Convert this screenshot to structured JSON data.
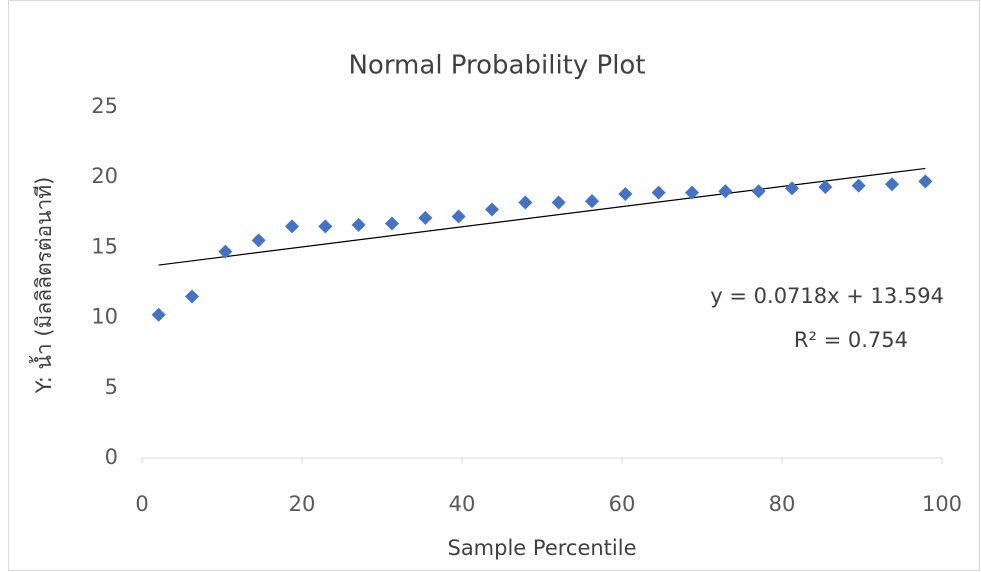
{
  "chart_data": {
    "type": "scatter",
    "title": "Normal Probability Plot",
    "x_label": "Sample Percentile",
    "y_label": "Y: น้ำ (มิลลิลิตรต่อนาที)",
    "x": [
      2.08,
      6.25,
      10.42,
      14.58,
      18.75,
      22.92,
      27.08,
      31.25,
      35.42,
      39.58,
      43.75,
      47.92,
      52.08,
      56.25,
      60.42,
      64.58,
      68.75,
      72.92,
      77.08,
      81.25,
      85.42,
      89.58,
      93.75,
      97.92
    ],
    "values": [
      10.2,
      11.5,
      14.7,
      15.5,
      16.5,
      16.5,
      16.6,
      16.7,
      17.1,
      17.2,
      17.7,
      18.2,
      18.2,
      18.3,
      18.8,
      18.9,
      18.9,
      19.0,
      19.0,
      19.2,
      19.3,
      19.4,
      19.5,
      19.7
    ],
    "color": "#4472c4",
    "xlim": [
      0,
      100
    ],
    "xticks": [
      0,
      20,
      40,
      60,
      80,
      100
    ],
    "ylim": [
      0,
      25
    ],
    "yticks": [
      0,
      5,
      10,
      15,
      20,
      25
    ],
    "grid": false,
    "trendline": {
      "slope": 0.0718,
      "intercept": 13.594,
      "equation": "y = 0.0718x + 13.594",
      "r2_label": "R² = 0.754",
      "color": "#000000"
    }
  }
}
